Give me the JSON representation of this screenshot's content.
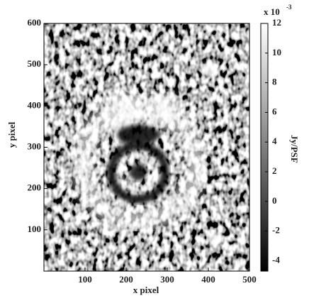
{
  "chart_data": {
    "type": "image",
    "xlabel": "x pixel",
    "ylabel": "y pixel",
    "xlim": [
      0,
      500
    ],
    "xticks": [
      100,
      200,
      300,
      400,
      500
    ],
    "ylim": [
      0,
      600
    ],
    "yticks": [
      100,
      200,
      300,
      400,
      500,
      600
    ],
    "colorbar": {
      "label": "Jy/PSF",
      "clim": [
        -4.7,
        12
      ],
      "ticks": [
        -4,
        -2,
        0,
        2,
        4,
        6,
        8,
        10,
        12
      ],
      "offset_label": "x 10",
      "offset_exponent": "-3",
      "cmap": [
        "#000000",
        "#ffffff"
      ]
    }
  }
}
